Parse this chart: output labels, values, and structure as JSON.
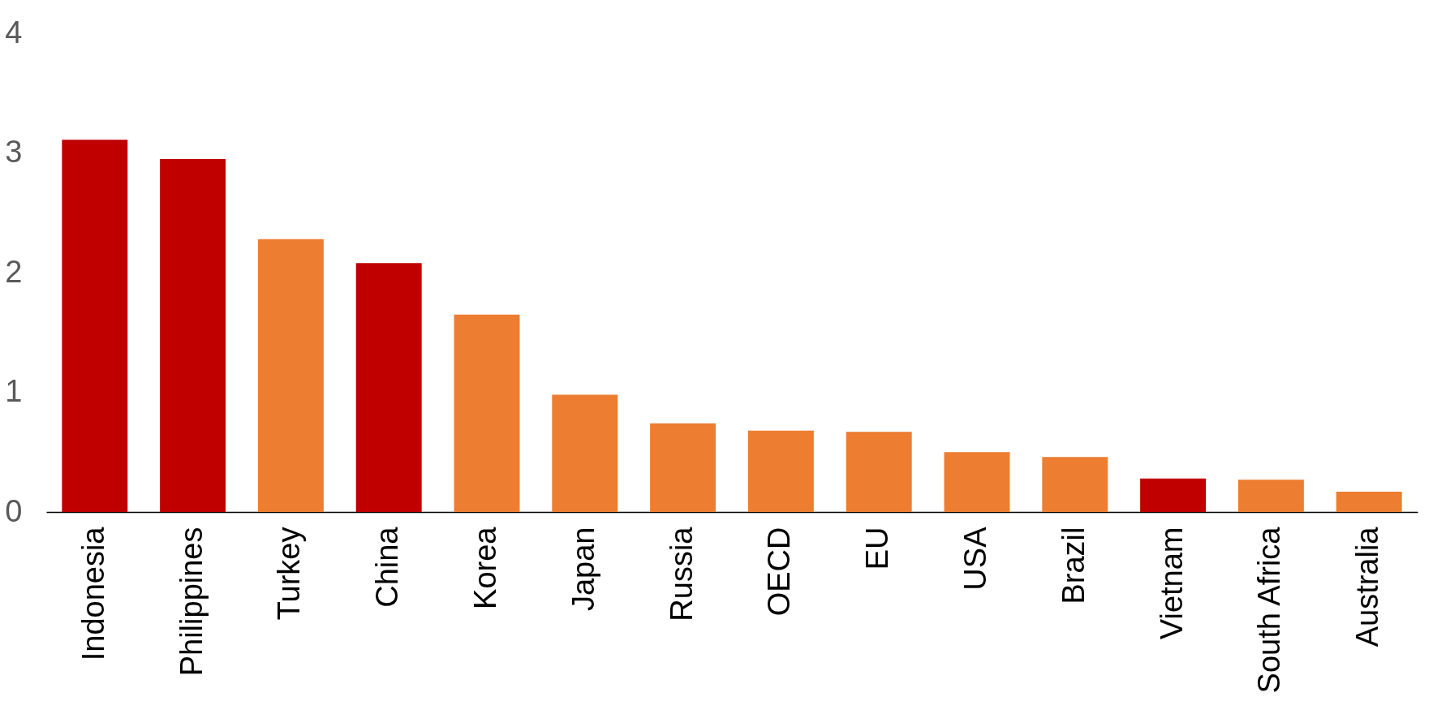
{
  "chart_data": {
    "type": "bar",
    "categories": [
      "Indonesia",
      "Philippines",
      "Turkey",
      "China",
      "Korea",
      "Japan",
      "Russia",
      "OECD",
      "EU",
      "USA",
      "Brazil",
      "Vietnam",
      "South Africa",
      "Australia"
    ],
    "values": [
      3.11,
      2.95,
      2.28,
      2.08,
      1.65,
      0.98,
      0.74,
      0.68,
      0.67,
      0.5,
      0.46,
      0.28,
      0.27,
      0.17
    ],
    "colors": [
      "#c00000",
      "#c00000",
      "#ed7d31",
      "#c00000",
      "#ed7d31",
      "#ed7d31",
      "#ed7d31",
      "#ed7d31",
      "#ed7d31",
      "#ed7d31",
      "#ed7d31",
      "#c00000",
      "#ed7d31",
      "#ed7d31"
    ],
    "ylim": [
      0,
      4
    ],
    "yticks": [
      0,
      1,
      2,
      3,
      4
    ],
    "grid": false
  }
}
